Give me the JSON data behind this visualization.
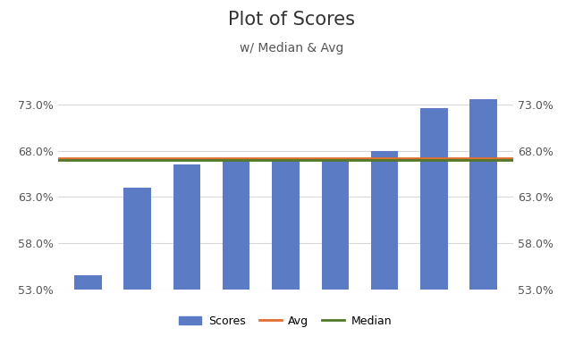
{
  "scores": [
    0.545,
    0.64,
    0.665,
    0.67,
    0.67,
    0.67,
    0.68,
    0.726,
    0.736
  ],
  "avg": 0.6718,
  "median": 0.67,
  "bar_color": "#5B7CC4",
  "avg_color": "#E07030",
  "median_color": "#507828",
  "title": "Plot of Scores",
  "subtitle": "w/ Median & Avg",
  "ylim_min": 0.53,
  "ylim_max": 0.74,
  "yticks": [
    0.53,
    0.58,
    0.63,
    0.68,
    0.73
  ],
  "bg_color": "#FFFFFF",
  "grid_color": "#D8D8D8",
  "title_fontsize": 15,
  "subtitle_fontsize": 10,
  "tick_fontsize": 9,
  "legend_fontsize": 9
}
